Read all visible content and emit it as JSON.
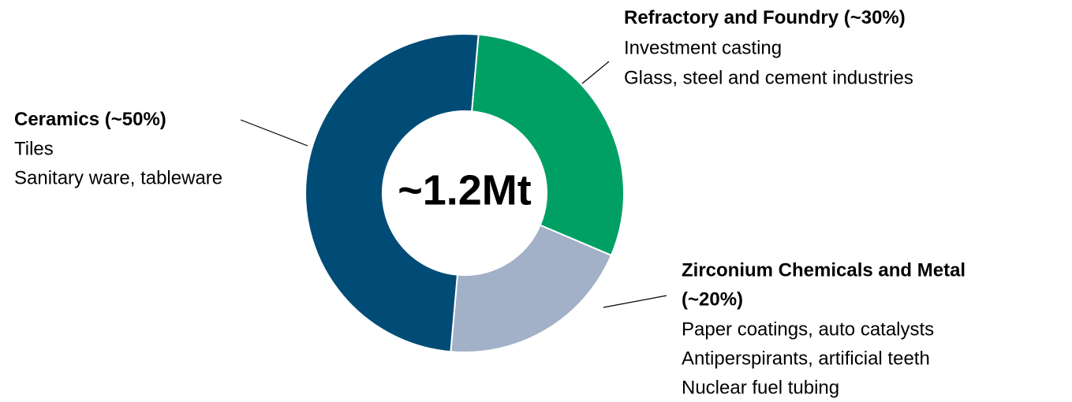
{
  "chart_data": {
    "type": "donut",
    "categories": [
      "Refractory and Foundry",
      "Zirconium Chemicals and Metal",
      "Ceramics"
    ],
    "values": [
      30,
      20,
      50
    ],
    "value_labels": [
      "(~30%)",
      "(~20%)",
      "(~50%)"
    ],
    "colors": [
      "#00a064",
      "#a2b1c8",
      "#004c76"
    ],
    "details": [
      [
        "Investment  casting",
        "Glass, steel and cement industries"
      ],
      [
        "Paper coatings, auto catalysts",
        "Antiperspirants, artificial teeth",
        "Nuclear fuel tubing"
      ],
      [
        "Tiles",
        "Sanitary ware, tableware"
      ]
    ],
    "center_label": "~1.2Mt"
  }
}
